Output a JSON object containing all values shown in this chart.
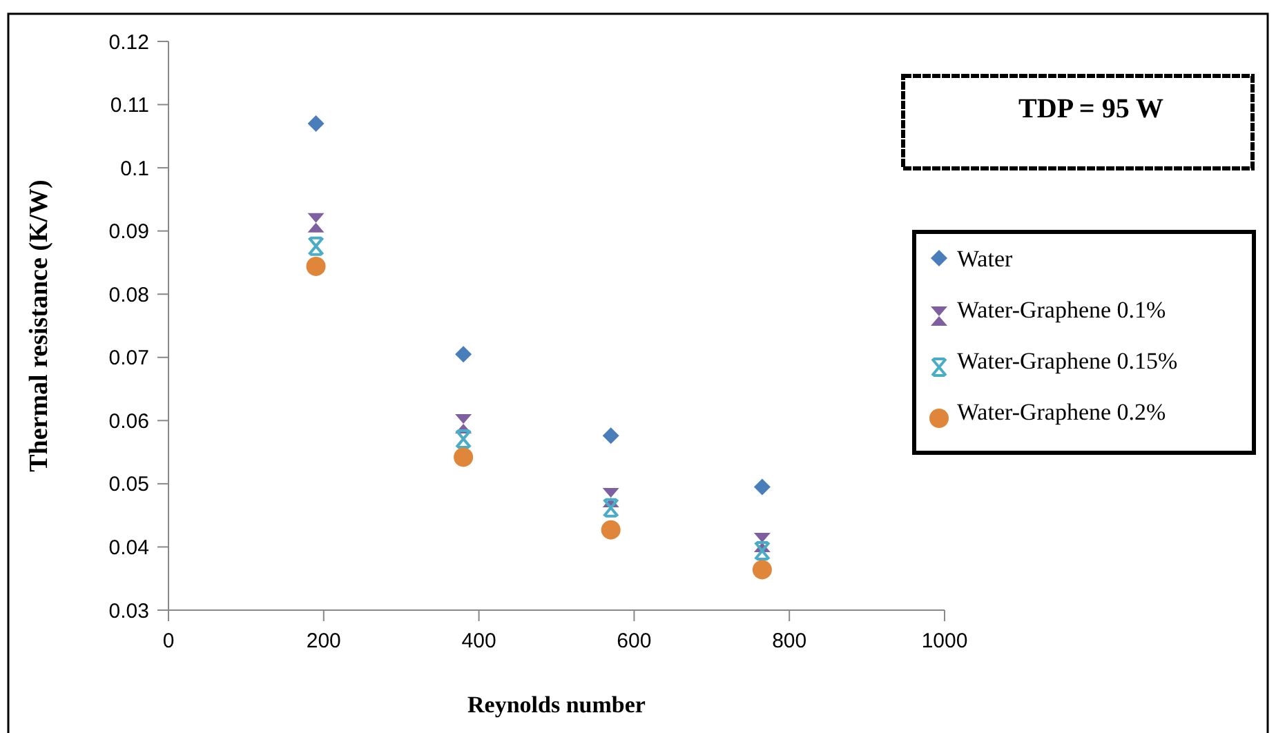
{
  "chart_data": {
    "type": "scatter",
    "xlabel": "Reynolds number",
    "ylabel": "Thermal resistance (K/W)",
    "annotations": [
      "TDP = 95 W"
    ],
    "xlim": [
      0,
      1000
    ],
    "xticks": [
      0,
      200,
      400,
      600,
      800,
      1000
    ],
    "ylim": [
      0.03,
      0.12
    ],
    "yticks": [
      0.03,
      0.04,
      0.05,
      0.06,
      0.07,
      0.08,
      0.09,
      0.1,
      0.11,
      0.12
    ],
    "grid": false,
    "legend": "right",
    "x": [
      190,
      380,
      570,
      765
    ],
    "series": [
      {
        "name": "Water",
        "color": "#4a7ebb",
        "marker": "diamond",
        "values": [
          0.107,
          0.0705,
          0.0576,
          0.0495
        ]
      },
      {
        "name": "Water-Graphene 0.1%",
        "color": "#7e60a0",
        "marker": "triangle",
        "values": [
          0.0913,
          0.0595,
          0.0478,
          0.0407
        ]
      },
      {
        "name": "Water-Graphene 0.15%",
        "color": "#4bacc6",
        "marker": "cross",
        "values": [
          0.0876,
          0.0571,
          0.0462,
          0.0394
        ]
      },
      {
        "name": "Water-Graphene 0.2%",
        "color": "#e0863a",
        "marker": "circle",
        "values": [
          0.0844,
          0.0542,
          0.0427,
          0.0364
        ]
      }
    ]
  }
}
